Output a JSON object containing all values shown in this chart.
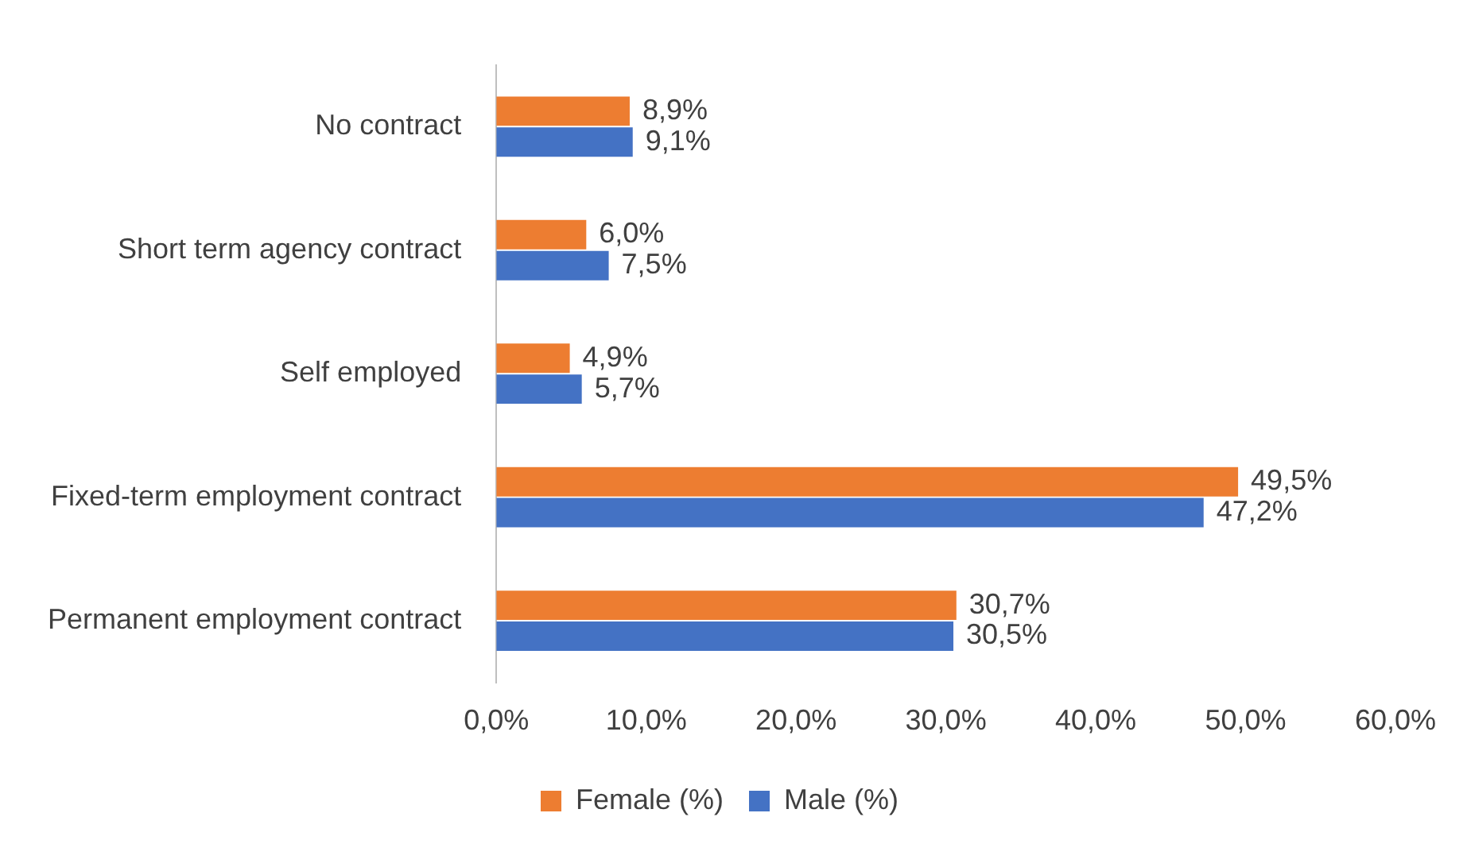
{
  "chart_data": {
    "type": "bar",
    "orientation": "horizontal",
    "categories": [
      "No contract",
      "Short term agency contract",
      "Self employed",
      "Fixed-term employment contract",
      "Permanent employment contract"
    ],
    "series": [
      {
        "name": "Female (%)",
        "color": "#ed7d31",
        "values": [
          8.9,
          6.0,
          4.9,
          49.5,
          30.7
        ],
        "value_labels": [
          "8,9%",
          "6,0%",
          "4,9%",
          "49,5%",
          "30,7%"
        ]
      },
      {
        "name": "Male (%)",
        "color": "#4472c4",
        "values": [
          9.1,
          7.5,
          5.7,
          47.2,
          30.5
        ],
        "value_labels": [
          "9,1%",
          "7,5%",
          "5,7%",
          "47,2%",
          "30,5%"
        ]
      }
    ],
    "xlim": [
      0,
      60
    ],
    "xticks": [
      {
        "value": 0,
        "label": "0,0%"
      },
      {
        "value": 10,
        "label": "10,0%"
      },
      {
        "value": 20,
        "label": "20,0%"
      },
      {
        "value": 30,
        "label": "30,0%"
      },
      {
        "value": 40,
        "label": "40,0%"
      },
      {
        "value": 50,
        "label": "50,0%"
      },
      {
        "value": 60,
        "label": "60,0%"
      }
    ],
    "grid": false,
    "legend": "bottom"
  }
}
